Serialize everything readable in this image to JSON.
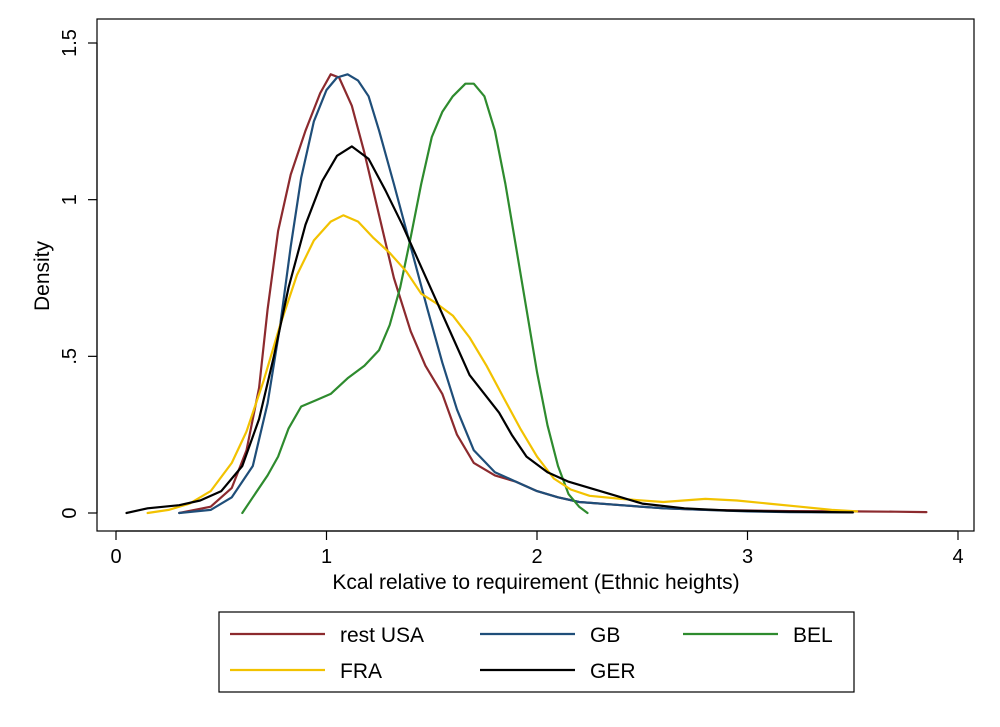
{
  "chart_data": {
    "type": "line",
    "title": "",
    "xlabel": "Kcal relative to requirement (Ethnic heights)",
    "ylabel": "Density",
    "xlim": [
      0,
      4
    ],
    "ylim": [
      0,
      1.5
    ],
    "x_ticks": [
      0,
      1,
      2,
      3,
      4
    ],
    "x_tick_labels": [
      "0",
      "1",
      "2",
      "3",
      "4"
    ],
    "y_ticks": [
      0,
      0.5,
      1,
      1.5
    ],
    "y_tick_labels": [
      "0",
      ".5",
      "1",
      "1.5"
    ],
    "grid": false,
    "legend_position": "bottom",
    "series": [
      {
        "name": "rest USA",
        "color": "#8c2a2e",
        "points": [
          [
            0.3,
            0.0
          ],
          [
            0.45,
            0.02
          ],
          [
            0.55,
            0.08
          ],
          [
            0.62,
            0.2
          ],
          [
            0.68,
            0.4
          ],
          [
            0.72,
            0.65
          ],
          [
            0.77,
            0.9
          ],
          [
            0.83,
            1.08
          ],
          [
            0.9,
            1.22
          ],
          [
            0.97,
            1.34
          ],
          [
            1.02,
            1.4
          ],
          [
            1.06,
            1.39
          ],
          [
            1.12,
            1.3
          ],
          [
            1.18,
            1.15
          ],
          [
            1.25,
            0.95
          ],
          [
            1.32,
            0.75
          ],
          [
            1.4,
            0.58
          ],
          [
            1.47,
            0.47
          ],
          [
            1.55,
            0.38
          ],
          [
            1.62,
            0.25
          ],
          [
            1.7,
            0.16
          ],
          [
            1.8,
            0.12
          ],
          [
            1.9,
            0.1
          ],
          [
            2.0,
            0.07
          ],
          [
            2.1,
            0.05
          ],
          [
            2.2,
            0.035
          ],
          [
            2.4,
            0.025
          ],
          [
            2.6,
            0.015
          ],
          [
            2.8,
            0.01
          ],
          [
            3.0,
            0.008
          ],
          [
            3.2,
            0.006
          ],
          [
            3.5,
            0.005
          ],
          [
            3.7,
            0.004
          ],
          [
            3.85,
            0.003
          ]
        ]
      },
      {
        "name": "GB",
        "color": "#1f4e79",
        "points": [
          [
            0.3,
            0.0
          ],
          [
            0.45,
            0.01
          ],
          [
            0.55,
            0.05
          ],
          [
            0.65,
            0.15
          ],
          [
            0.72,
            0.35
          ],
          [
            0.78,
            0.6
          ],
          [
            0.83,
            0.85
          ],
          [
            0.88,
            1.07
          ],
          [
            0.94,
            1.25
          ],
          [
            1.0,
            1.35
          ],
          [
            1.05,
            1.39
          ],
          [
            1.1,
            1.4
          ],
          [
            1.15,
            1.38
          ],
          [
            1.2,
            1.33
          ],
          [
            1.25,
            1.22
          ],
          [
            1.32,
            1.05
          ],
          [
            1.4,
            0.85
          ],
          [
            1.48,
            0.65
          ],
          [
            1.55,
            0.48
          ],
          [
            1.62,
            0.33
          ],
          [
            1.7,
            0.2
          ],
          [
            1.8,
            0.13
          ],
          [
            1.9,
            0.1
          ],
          [
            2.0,
            0.07
          ],
          [
            2.1,
            0.05
          ],
          [
            2.2,
            0.035
          ],
          [
            2.4,
            0.025
          ],
          [
            2.6,
            0.015
          ],
          [
            2.8,
            0.01
          ],
          [
            3.0,
            0.005
          ],
          [
            3.2,
            0.003
          ],
          [
            3.5,
            0.002
          ]
        ]
      },
      {
        "name": "BEL",
        "color": "#2e8b2e",
        "points": [
          [
            0.6,
            0.0
          ],
          [
            0.65,
            0.05
          ],
          [
            0.72,
            0.12
          ],
          [
            0.77,
            0.18
          ],
          [
            0.82,
            0.27
          ],
          [
            0.88,
            0.34
          ],
          [
            0.95,
            0.36
          ],
          [
            1.02,
            0.38
          ],
          [
            1.1,
            0.43
          ],
          [
            1.18,
            0.47
          ],
          [
            1.25,
            0.52
          ],
          [
            1.3,
            0.6
          ],
          [
            1.35,
            0.72
          ],
          [
            1.4,
            0.88
          ],
          [
            1.45,
            1.05
          ],
          [
            1.5,
            1.2
          ],
          [
            1.55,
            1.28
          ],
          [
            1.6,
            1.33
          ],
          [
            1.66,
            1.37
          ],
          [
            1.7,
            1.37
          ],
          [
            1.75,
            1.33
          ],
          [
            1.8,
            1.22
          ],
          [
            1.85,
            1.05
          ],
          [
            1.9,
            0.85
          ],
          [
            1.95,
            0.65
          ],
          [
            2.0,
            0.45
          ],
          [
            2.05,
            0.28
          ],
          [
            2.1,
            0.15
          ],
          [
            2.15,
            0.06
          ],
          [
            2.2,
            0.02
          ],
          [
            2.24,
            0.0
          ]
        ]
      },
      {
        "name": "FRA",
        "color": "#f2c200",
        "points": [
          [
            0.15,
            0.0
          ],
          [
            0.25,
            0.01
          ],
          [
            0.35,
            0.03
          ],
          [
            0.45,
            0.07
          ],
          [
            0.55,
            0.16
          ],
          [
            0.62,
            0.26
          ],
          [
            0.7,
            0.42
          ],
          [
            0.78,
            0.6
          ],
          [
            0.86,
            0.76
          ],
          [
            0.94,
            0.87
          ],
          [
            1.02,
            0.93
          ],
          [
            1.08,
            0.95
          ],
          [
            1.15,
            0.93
          ],
          [
            1.22,
            0.88
          ],
          [
            1.3,
            0.83
          ],
          [
            1.38,
            0.77
          ],
          [
            1.45,
            0.7
          ],
          [
            1.52,
            0.67
          ],
          [
            1.6,
            0.63
          ],
          [
            1.68,
            0.56
          ],
          [
            1.76,
            0.47
          ],
          [
            1.84,
            0.37
          ],
          [
            1.92,
            0.27
          ],
          [
            2.0,
            0.18
          ],
          [
            2.08,
            0.11
          ],
          [
            2.16,
            0.075
          ],
          [
            2.25,
            0.055
          ],
          [
            2.4,
            0.045
          ],
          [
            2.6,
            0.035
          ],
          [
            2.8,
            0.045
          ],
          [
            2.95,
            0.04
          ],
          [
            3.1,
            0.03
          ],
          [
            3.25,
            0.02
          ],
          [
            3.4,
            0.01
          ],
          [
            3.52,
            0.005
          ]
        ]
      },
      {
        "name": "GER",
        "color": "#000000",
        "points": [
          [
            0.05,
            0.0
          ],
          [
            0.15,
            0.015
          ],
          [
            0.3,
            0.025
          ],
          [
            0.4,
            0.04
          ],
          [
            0.5,
            0.07
          ],
          [
            0.6,
            0.15
          ],
          [
            0.68,
            0.3
          ],
          [
            0.75,
            0.5
          ],
          [
            0.82,
            0.72
          ],
          [
            0.9,
            0.92
          ],
          [
            0.98,
            1.06
          ],
          [
            1.05,
            1.14
          ],
          [
            1.12,
            1.17
          ],
          [
            1.2,
            1.13
          ],
          [
            1.28,
            1.03
          ],
          [
            1.36,
            0.92
          ],
          [
            1.44,
            0.8
          ],
          [
            1.52,
            0.68
          ],
          [
            1.6,
            0.56
          ],
          [
            1.68,
            0.44
          ],
          [
            1.75,
            0.38
          ],
          [
            1.82,
            0.32
          ],
          [
            1.88,
            0.25
          ],
          [
            1.95,
            0.18
          ],
          [
            2.05,
            0.13
          ],
          [
            2.15,
            0.1
          ],
          [
            2.25,
            0.08
          ],
          [
            2.35,
            0.06
          ],
          [
            2.5,
            0.03
          ],
          [
            2.7,
            0.015
          ],
          [
            2.9,
            0.008
          ],
          [
            3.2,
            0.004
          ],
          [
            3.5,
            0.002
          ]
        ]
      }
    ]
  }
}
